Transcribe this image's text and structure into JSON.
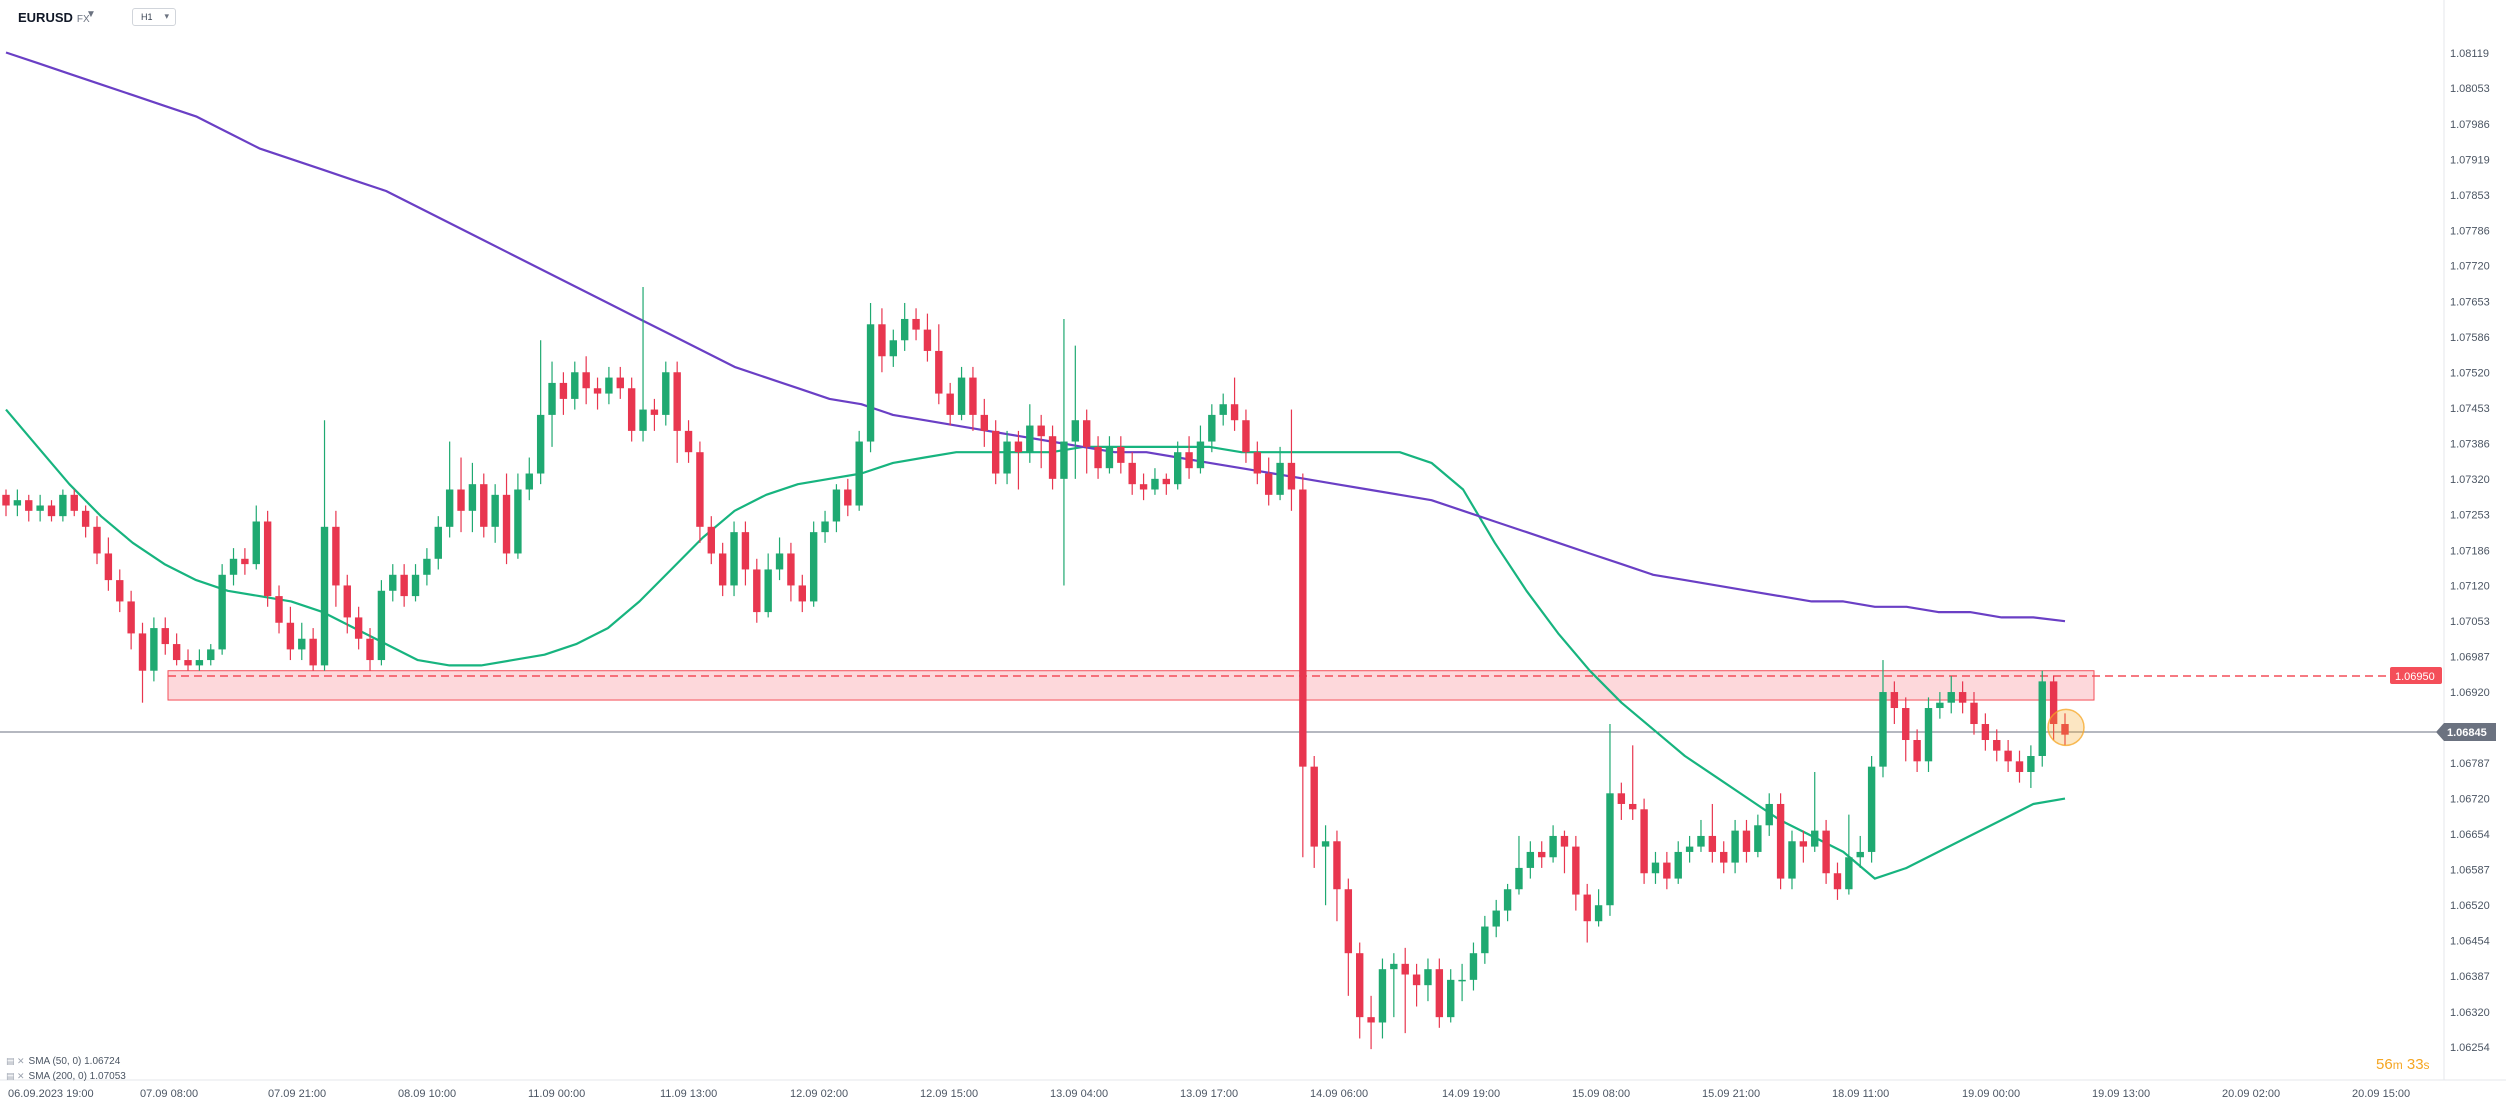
{
  "header": {
    "symbol": "EURUSD",
    "symbol_type": "FX",
    "timeframe": "H1"
  },
  "legend": [
    {
      "icon": "settings-icon",
      "label": "SMA (50, 0) 1.06724"
    },
    {
      "icon": "settings-icon",
      "label": "SMA (200, 0) 1.07053"
    }
  ],
  "countdown": {
    "minutes": "56",
    "minutes_unit": "m",
    "seconds": "33",
    "seconds_unit": "s"
  },
  "colors": {
    "bull": "#1fa971",
    "bear": "#e8364f",
    "sma50": "#17b47f",
    "sma200": "#6a3fc5",
    "resistance": "#f44e59",
    "current_price": "#6b7280",
    "countdown": "#f5a623"
  },
  "chart_data": {
    "type": "candlestick",
    "instrument": "EURUSD",
    "timeframe": "H1",
    "y_ticks": [
      "1.08119",
      "1.08053",
      "1.07986",
      "1.07919",
      "1.07853",
      "1.07786",
      "1.07720",
      "1.07653",
      "1.07586",
      "1.07520",
      "1.07453",
      "1.07386",
      "1.07320",
      "1.07253",
      "1.07186",
      "1.07120",
      "1.07053",
      "1.06987",
      "1.06920",
      "1.06854",
      "1.06787",
      "1.06720",
      "1.06654",
      "1.06587",
      "1.06520",
      "1.06454",
      "1.06387",
      "1.06320",
      "1.06254"
    ],
    "ylim": [
      1.06254,
      1.08119
    ],
    "x_ticks": [
      "06.09.2023 19:00",
      "07.09 08:00",
      "07.09 21:00",
      "08.09 10:00",
      "11.09 00:00",
      "11.09 13:00",
      "12.09 02:00",
      "12.09 15:00",
      "13.09 04:00",
      "13.09 17:00",
      "14.09 06:00",
      "14.09 19:00",
      "15.09 08:00",
      "15.09 21:00",
      "18.09 11:00",
      "19.09 00:00",
      "19.09 13:00",
      "20.09 02:00",
      "20.09 15:00"
    ],
    "current_price": "1.06845",
    "resistance_level": "1.06950",
    "resistance_zone": [
      1.06905,
      1.0696
    ],
    "highlight_at_last_candle": true,
    "series": [
      {
        "name": "SMA (50, 0)",
        "last_value": 1.06724,
        "values": [
          1.0745,
          1.0738,
          1.0731,
          1.0725,
          1.072,
          1.0716,
          1.0713,
          1.0711,
          1.071,
          1.0709,
          1.0707,
          1.0704,
          1.0701,
          1.0698,
          1.0697,
          1.0697,
          1.0698,
          1.0699,
          1.0701,
          1.0704,
          1.0709,
          1.0715,
          1.0721,
          1.0726,
          1.0729,
          1.0731,
          1.0732,
          1.0733,
          1.0735,
          1.0736,
          1.0737,
          1.0737,
          1.0737,
          1.0737,
          1.0738,
          1.0738,
          1.0738,
          1.0738,
          1.0738,
          1.0737,
          1.0737,
          1.0737,
          1.0737,
          1.0737,
          1.0737,
          1.0735,
          1.073,
          1.072,
          1.0711,
          1.0703,
          1.0696,
          1.069,
          1.0685,
          1.068,
          1.0676,
          1.0672,
          1.0668,
          1.0665,
          1.0662,
          1.0657,
          1.0659,
          1.0662,
          1.0665,
          1.0668,
          1.0671,
          1.0672
        ]
      },
      {
        "name": "SMA (200, 0)",
        "last_value": 1.07053,
        "values": [
          1.0812,
          1.081,
          1.0808,
          1.0806,
          1.0804,
          1.0802,
          1.08,
          1.0797,
          1.0794,
          1.0792,
          1.079,
          1.0788,
          1.0786,
          1.0783,
          1.078,
          1.0777,
          1.0774,
          1.0771,
          1.0768,
          1.0765,
          1.0762,
          1.0759,
          1.0756,
          1.0753,
          1.0751,
          1.0749,
          1.0747,
          1.0746,
          1.0744,
          1.0743,
          1.0742,
          1.0741,
          1.074,
          1.0739,
          1.0738,
          1.0737,
          1.0737,
          1.0736,
          1.0735,
          1.0734,
          1.0733,
          1.0732,
          1.0731,
          1.073,
          1.0729,
          1.0728,
          1.0726,
          1.0724,
          1.0722,
          1.072,
          1.0718,
          1.0716,
          1.0714,
          1.0713,
          1.0712,
          1.0711,
          1.071,
          1.0709,
          1.0709,
          1.0708,
          1.0708,
          1.0707,
          1.0707,
          1.0706,
          1.0706,
          1.07053
        ]
      }
    ],
    "candles": [
      [
        1.0729,
        1.0727,
        1.073,
        1.0725
      ],
      [
        1.0727,
        1.0728,
        1.073,
        1.0725
      ],
      [
        1.0728,
        1.0726,
        1.0729,
        1.0724
      ],
      [
        1.0726,
        1.0727,
        1.0729,
        1.0724
      ],
      [
        1.0727,
        1.0725,
        1.0728,
        1.0724
      ],
      [
        1.0725,
        1.0729,
        1.073,
        1.0724
      ],
      [
        1.0729,
        1.0726,
        1.073,
        1.0725
      ],
      [
        1.0726,
        1.0723,
        1.0727,
        1.0721
      ],
      [
        1.0723,
        1.0718,
        1.0725,
        1.0716
      ],
      [
        1.0718,
        1.0713,
        1.0721,
        1.0711
      ],
      [
        1.0713,
        1.0709,
        1.0715,
        1.0707
      ],
      [
        1.0709,
        1.0703,
        1.0711,
        1.07
      ],
      [
        1.0703,
        1.0696,
        1.0705,
        1.069
      ],
      [
        1.0696,
        1.0704,
        1.0706,
        1.0694
      ],
      [
        1.0704,
        1.0701,
        1.0706,
        1.0699
      ],
      [
        1.0701,
        1.0698,
        1.0703,
        1.0697
      ],
      [
        1.0698,
        1.0697,
        1.07,
        1.0696
      ],
      [
        1.0697,
        1.0698,
        1.07,
        1.0696
      ],
      [
        1.0698,
        1.07,
        1.0701,
        1.0697
      ],
      [
        1.07,
        1.0714,
        1.0716,
        1.0699
      ],
      [
        1.0714,
        1.0717,
        1.0719,
        1.0712
      ],
      [
        1.0717,
        1.0716,
        1.0719,
        1.0714
      ],
      [
        1.0716,
        1.0724,
        1.0727,
        1.0715
      ],
      [
        1.0724,
        1.071,
        1.0726,
        1.0708
      ],
      [
        1.071,
        1.0705,
        1.0712,
        1.0703
      ],
      [
        1.0705,
        1.07,
        1.0708,
        1.0698
      ],
      [
        1.07,
        1.0702,
        1.0705,
        1.0698
      ],
      [
        1.0702,
        1.0697,
        1.0704,
        1.0696
      ],
      [
        1.0697,
        1.0723,
        1.0743,
        1.0696
      ],
      [
        1.0723,
        1.0712,
        1.0726,
        1.0708
      ],
      [
        1.0712,
        1.0706,
        1.0714,
        1.0703
      ],
      [
        1.0706,
        1.0702,
        1.0708,
        1.07
      ],
      [
        1.0702,
        1.0698,
        1.0704,
        1.0696
      ],
      [
        1.0698,
        1.0711,
        1.0713,
        1.0697
      ],
      [
        1.0711,
        1.0714,
        1.0716,
        1.0709
      ],
      [
        1.0714,
        1.071,
        1.0716,
        1.0708
      ],
      [
        1.071,
        1.0714,
        1.0716,
        1.0709
      ],
      [
        1.0714,
        1.0717,
        1.0719,
        1.0712
      ],
      [
        1.0717,
        1.0723,
        1.0725,
        1.0715
      ],
      [
        1.0723,
        1.073,
        1.0739,
        1.0721
      ],
      [
        1.073,
        1.0726,
        1.0736,
        1.0722
      ],
      [
        1.0726,
        1.0731,
        1.0735,
        1.0722
      ],
      [
        1.0731,
        1.0723,
        1.0733,
        1.0721
      ],
      [
        1.0723,
        1.0729,
        1.0731,
        1.072
      ],
      [
        1.0729,
        1.0718,
        1.0733,
        1.0716
      ],
      [
        1.0718,
        1.073,
        1.0733,
        1.0717
      ],
      [
        1.073,
        1.0733,
        1.0736,
        1.0728
      ],
      [
        1.0733,
        1.0744,
        1.0758,
        1.0731
      ],
      [
        1.0744,
        1.075,
        1.0754,
        1.0738
      ],
      [
        1.075,
        1.0747,
        1.0752,
        1.0744
      ],
      [
        1.0747,
        1.0752,
        1.0754,
        1.0745
      ],
      [
        1.0752,
        1.0749,
        1.0755,
        1.0746
      ],
      [
        1.0749,
        1.0748,
        1.0751,
        1.0745
      ],
      [
        1.0748,
        1.0751,
        1.0753,
        1.0746
      ],
      [
        1.0751,
        1.0749,
        1.0753,
        1.0747
      ],
      [
        1.0749,
        1.0741,
        1.0751,
        1.0739
      ],
      [
        1.0741,
        1.0745,
        1.0768,
        1.0739
      ],
      [
        1.0745,
        1.0744,
        1.0747,
        1.0741
      ],
      [
        1.0744,
        1.0752,
        1.0754,
        1.0742
      ],
      [
        1.0752,
        1.0741,
        1.0754,
        1.0735
      ],
      [
        1.0741,
        1.0737,
        1.0743,
        1.0735
      ],
      [
        1.0737,
        1.0723,
        1.0739,
        1.072
      ],
      [
        1.0723,
        1.0718,
        1.0725,
        1.0716
      ],
      [
        1.0718,
        1.0712,
        1.072,
        1.071
      ],
      [
        1.0712,
        1.0722,
        1.0724,
        1.071
      ],
      [
        1.0722,
        1.0715,
        1.0724,
        1.0712
      ],
      [
        1.0715,
        1.0707,
        1.0717,
        1.0705
      ],
      [
        1.0707,
        1.0715,
        1.0718,
        1.0706
      ],
      [
        1.0715,
        1.0718,
        1.0721,
        1.0713
      ],
      [
        1.0718,
        1.0712,
        1.072,
        1.0709
      ],
      [
        1.0712,
        1.0709,
        1.0714,
        1.0707
      ],
      [
        1.0709,
        1.0722,
        1.0724,
        1.0708
      ],
      [
        1.0722,
        1.0724,
        1.0726,
        1.072
      ],
      [
        1.0724,
        1.073,
        1.0731,
        1.0722
      ],
      [
        1.073,
        1.0727,
        1.0732,
        1.0725
      ],
      [
        1.0727,
        1.0739,
        1.0741,
        1.0726
      ],
      [
        1.0739,
        1.0761,
        1.0765,
        1.0737
      ],
      [
        1.0761,
        1.0755,
        1.0764,
        1.0752
      ],
      [
        1.0755,
        1.0758,
        1.076,
        1.0753
      ],
      [
        1.0758,
        1.0762,
        1.0765,
        1.0756
      ],
      [
        1.0762,
        1.076,
        1.0764,
        1.0758
      ],
      [
        1.076,
        1.0756,
        1.0763,
        1.0754
      ],
      [
        1.0756,
        1.0748,
        1.0761,
        1.0746
      ],
      [
        1.0748,
        1.0744,
        1.075,
        1.0742
      ],
      [
        1.0744,
        1.0751,
        1.0753,
        1.0743
      ],
      [
        1.0751,
        1.0744,
        1.0753,
        1.0741
      ],
      [
        1.0744,
        1.0741,
        1.0747,
        1.0738
      ],
      [
        1.0741,
        1.0733,
        1.0743,
        1.0731
      ],
      [
        1.0733,
        1.0739,
        1.0741,
        1.0731
      ],
      [
        1.0739,
        1.0737,
        1.0741,
        1.073
      ],
      [
        1.0737,
        1.0742,
        1.0746,
        1.0735
      ],
      [
        1.0742,
        1.074,
        1.0744,
        1.0734
      ],
      [
        1.074,
        1.0732,
        1.0742,
        1.073
      ],
      [
        1.0732,
        1.0739,
        1.0762,
        1.0712
      ],
      [
        1.0739,
        1.0743,
        1.0757,
        1.0732
      ],
      [
        1.0743,
        1.0738,
        1.0745,
        1.0733
      ],
      [
        1.0738,
        1.0734,
        1.074,
        1.0732
      ],
      [
        1.0734,
        1.0738,
        1.074,
        1.0733
      ],
      [
        1.0738,
        1.0735,
        1.074,
        1.0733
      ],
      [
        1.0735,
        1.0731,
        1.0737,
        1.0729
      ],
      [
        1.0731,
        1.073,
        1.0733,
        1.0728
      ],
      [
        1.073,
        1.0732,
        1.0734,
        1.0729
      ],
      [
        1.0732,
        1.0731,
        1.0733,
        1.0729
      ],
      [
        1.0731,
        1.0737,
        1.0739,
        1.073
      ],
      [
        1.0737,
        1.0734,
        1.074,
        1.0732
      ],
      [
        1.0734,
        1.0739,
        1.0742,
        1.0733
      ],
      [
        1.0739,
        1.0744,
        1.0746,
        1.0737
      ],
      [
        1.0744,
        1.0746,
        1.0748,
        1.0742
      ],
      [
        1.0746,
        1.0743,
        1.0751,
        1.0741
      ],
      [
        1.0743,
        1.0737,
        1.0745,
        1.0735
      ],
      [
        1.0737,
        1.0733,
        1.0739,
        1.0731
      ],
      [
        1.0733,
        1.0729,
        1.0736,
        1.0727
      ],
      [
        1.0729,
        1.0735,
        1.0738,
        1.0728
      ],
      [
        1.0735,
        1.073,
        1.0745,
        1.0726
      ],
      [
        1.073,
        1.0678,
        1.0733,
        1.0661
      ],
      [
        1.0678,
        1.0663,
        1.068,
        1.0659
      ],
      [
        1.0663,
        1.0664,
        1.0667,
        1.0652
      ],
      [
        1.0664,
        1.0655,
        1.0666,
        1.0649
      ],
      [
        1.0655,
        1.0643,
        1.0657,
        1.0635
      ],
      [
        1.0643,
        1.0631,
        1.0645,
        1.0627
      ],
      [
        1.0631,
        1.063,
        1.0635,
        1.0625
      ],
      [
        1.063,
        1.064,
        1.0642,
        1.0627
      ],
      [
        1.064,
        1.0641,
        1.0643,
        1.0631
      ],
      [
        1.0641,
        1.0639,
        1.0644,
        1.0628
      ],
      [
        1.0639,
        1.0637,
        1.0641,
        1.0633
      ],
      [
        1.0637,
        1.064,
        1.0642,
        1.0634
      ],
      [
        1.064,
        1.0631,
        1.0642,
        1.0629
      ],
      [
        1.0631,
        1.0638,
        1.064,
        1.063
      ],
      [
        1.0638,
        1.0638,
        1.0641,
        1.0634
      ],
      [
        1.0638,
        1.0643,
        1.0645,
        1.0636
      ],
      [
        1.0643,
        1.0648,
        1.065,
        1.0641
      ],
      [
        1.0648,
        1.0651,
        1.0653,
        1.0646
      ],
      [
        1.0651,
        1.0655,
        1.0656,
        1.0649
      ],
      [
        1.0655,
        1.0659,
        1.0665,
        1.0654
      ],
      [
        1.0659,
        1.0662,
        1.0664,
        1.0657
      ],
      [
        1.0662,
        1.0661,
        1.0664,
        1.0659
      ],
      [
        1.0661,
        1.0665,
        1.0667,
        1.066
      ],
      [
        1.0665,
        1.0663,
        1.0666,
        1.0658
      ],
      [
        1.0663,
        1.0654,
        1.0665,
        1.0651
      ],
      [
        1.0654,
        1.0649,
        1.0656,
        1.0645
      ],
      [
        1.0649,
        1.0652,
        1.0655,
        1.0648
      ],
      [
        1.0652,
        1.0673,
        1.0686,
        1.065
      ],
      [
        1.0673,
        1.0671,
        1.0675,
        1.0668
      ],
      [
        1.0671,
        1.067,
        1.0682,
        1.0668
      ],
      [
        1.067,
        1.0658,
        1.0672,
        1.0656
      ],
      [
        1.0658,
        1.066,
        1.0662,
        1.0656
      ],
      [
        1.066,
        1.0657,
        1.0662,
        1.0655
      ],
      [
        1.0657,
        1.0662,
        1.0664,
        1.0656
      ],
      [
        1.0662,
        1.0663,
        1.0665,
        1.066
      ],
      [
        1.0663,
        1.0665,
        1.0668,
        1.0662
      ],
      [
        1.0665,
        1.0662,
        1.0671,
        1.066
      ],
      [
        1.0662,
        1.066,
        1.0664,
        1.0658
      ],
      [
        1.066,
        1.0666,
        1.0668,
        1.0658
      ],
      [
        1.0666,
        1.0662,
        1.0668,
        1.066
      ],
      [
        1.0662,
        1.0667,
        1.0669,
        1.0661
      ],
      [
        1.0667,
        1.0671,
        1.0673,
        1.0665
      ],
      [
        1.0671,
        1.0657,
        1.0673,
        1.0655
      ],
      [
        1.0657,
        1.0664,
        1.0666,
        1.0655
      ],
      [
        1.0664,
        1.0663,
        1.0666,
        1.066
      ],
      [
        1.0663,
        1.0666,
        1.0677,
        1.0662
      ],
      [
        1.0666,
        1.0658,
        1.0668,
        1.0656
      ],
      [
        1.0658,
        1.0655,
        1.066,
        1.0653
      ],
      [
        1.0655,
        1.0661,
        1.0669,
        1.0654
      ],
      [
        1.0661,
        1.0662,
        1.0665,
        1.0659
      ],
      [
        1.0662,
        1.0678,
        1.068,
        1.066
      ],
      [
        1.0678,
        1.0692,
        1.0698,
        1.0676
      ],
      [
        1.0692,
        1.0689,
        1.0694,
        1.0686
      ],
      [
        1.0689,
        1.0683,
        1.0691,
        1.0679
      ],
      [
        1.0683,
        1.0679,
        1.0685,
        1.0677
      ],
      [
        1.0679,
        1.0689,
        1.0691,
        1.0677
      ],
      [
        1.0689,
        1.069,
        1.0692,
        1.0687
      ],
      [
        1.069,
        1.0692,
        1.0695,
        1.0688
      ],
      [
        1.0692,
        1.069,
        1.0694,
        1.0688
      ],
      [
        1.069,
        1.0686,
        1.0692,
        1.0684
      ],
      [
        1.0686,
        1.0683,
        1.0688,
        1.0681
      ],
      [
        1.0683,
        1.0681,
        1.0685,
        1.0679
      ],
      [
        1.0681,
        1.0679,
        1.0683,
        1.0677
      ],
      [
        1.0679,
        1.0677,
        1.0681,
        1.0675
      ],
      [
        1.0677,
        1.068,
        1.0682,
        1.0674
      ],
      [
        1.068,
        1.0694,
        1.0696,
        1.0678
      ],
      [
        1.0694,
        1.0686,
        1.0695,
        1.0683
      ],
      [
        1.0686,
        1.0684,
        1.0688,
        1.0682
      ]
    ]
  }
}
